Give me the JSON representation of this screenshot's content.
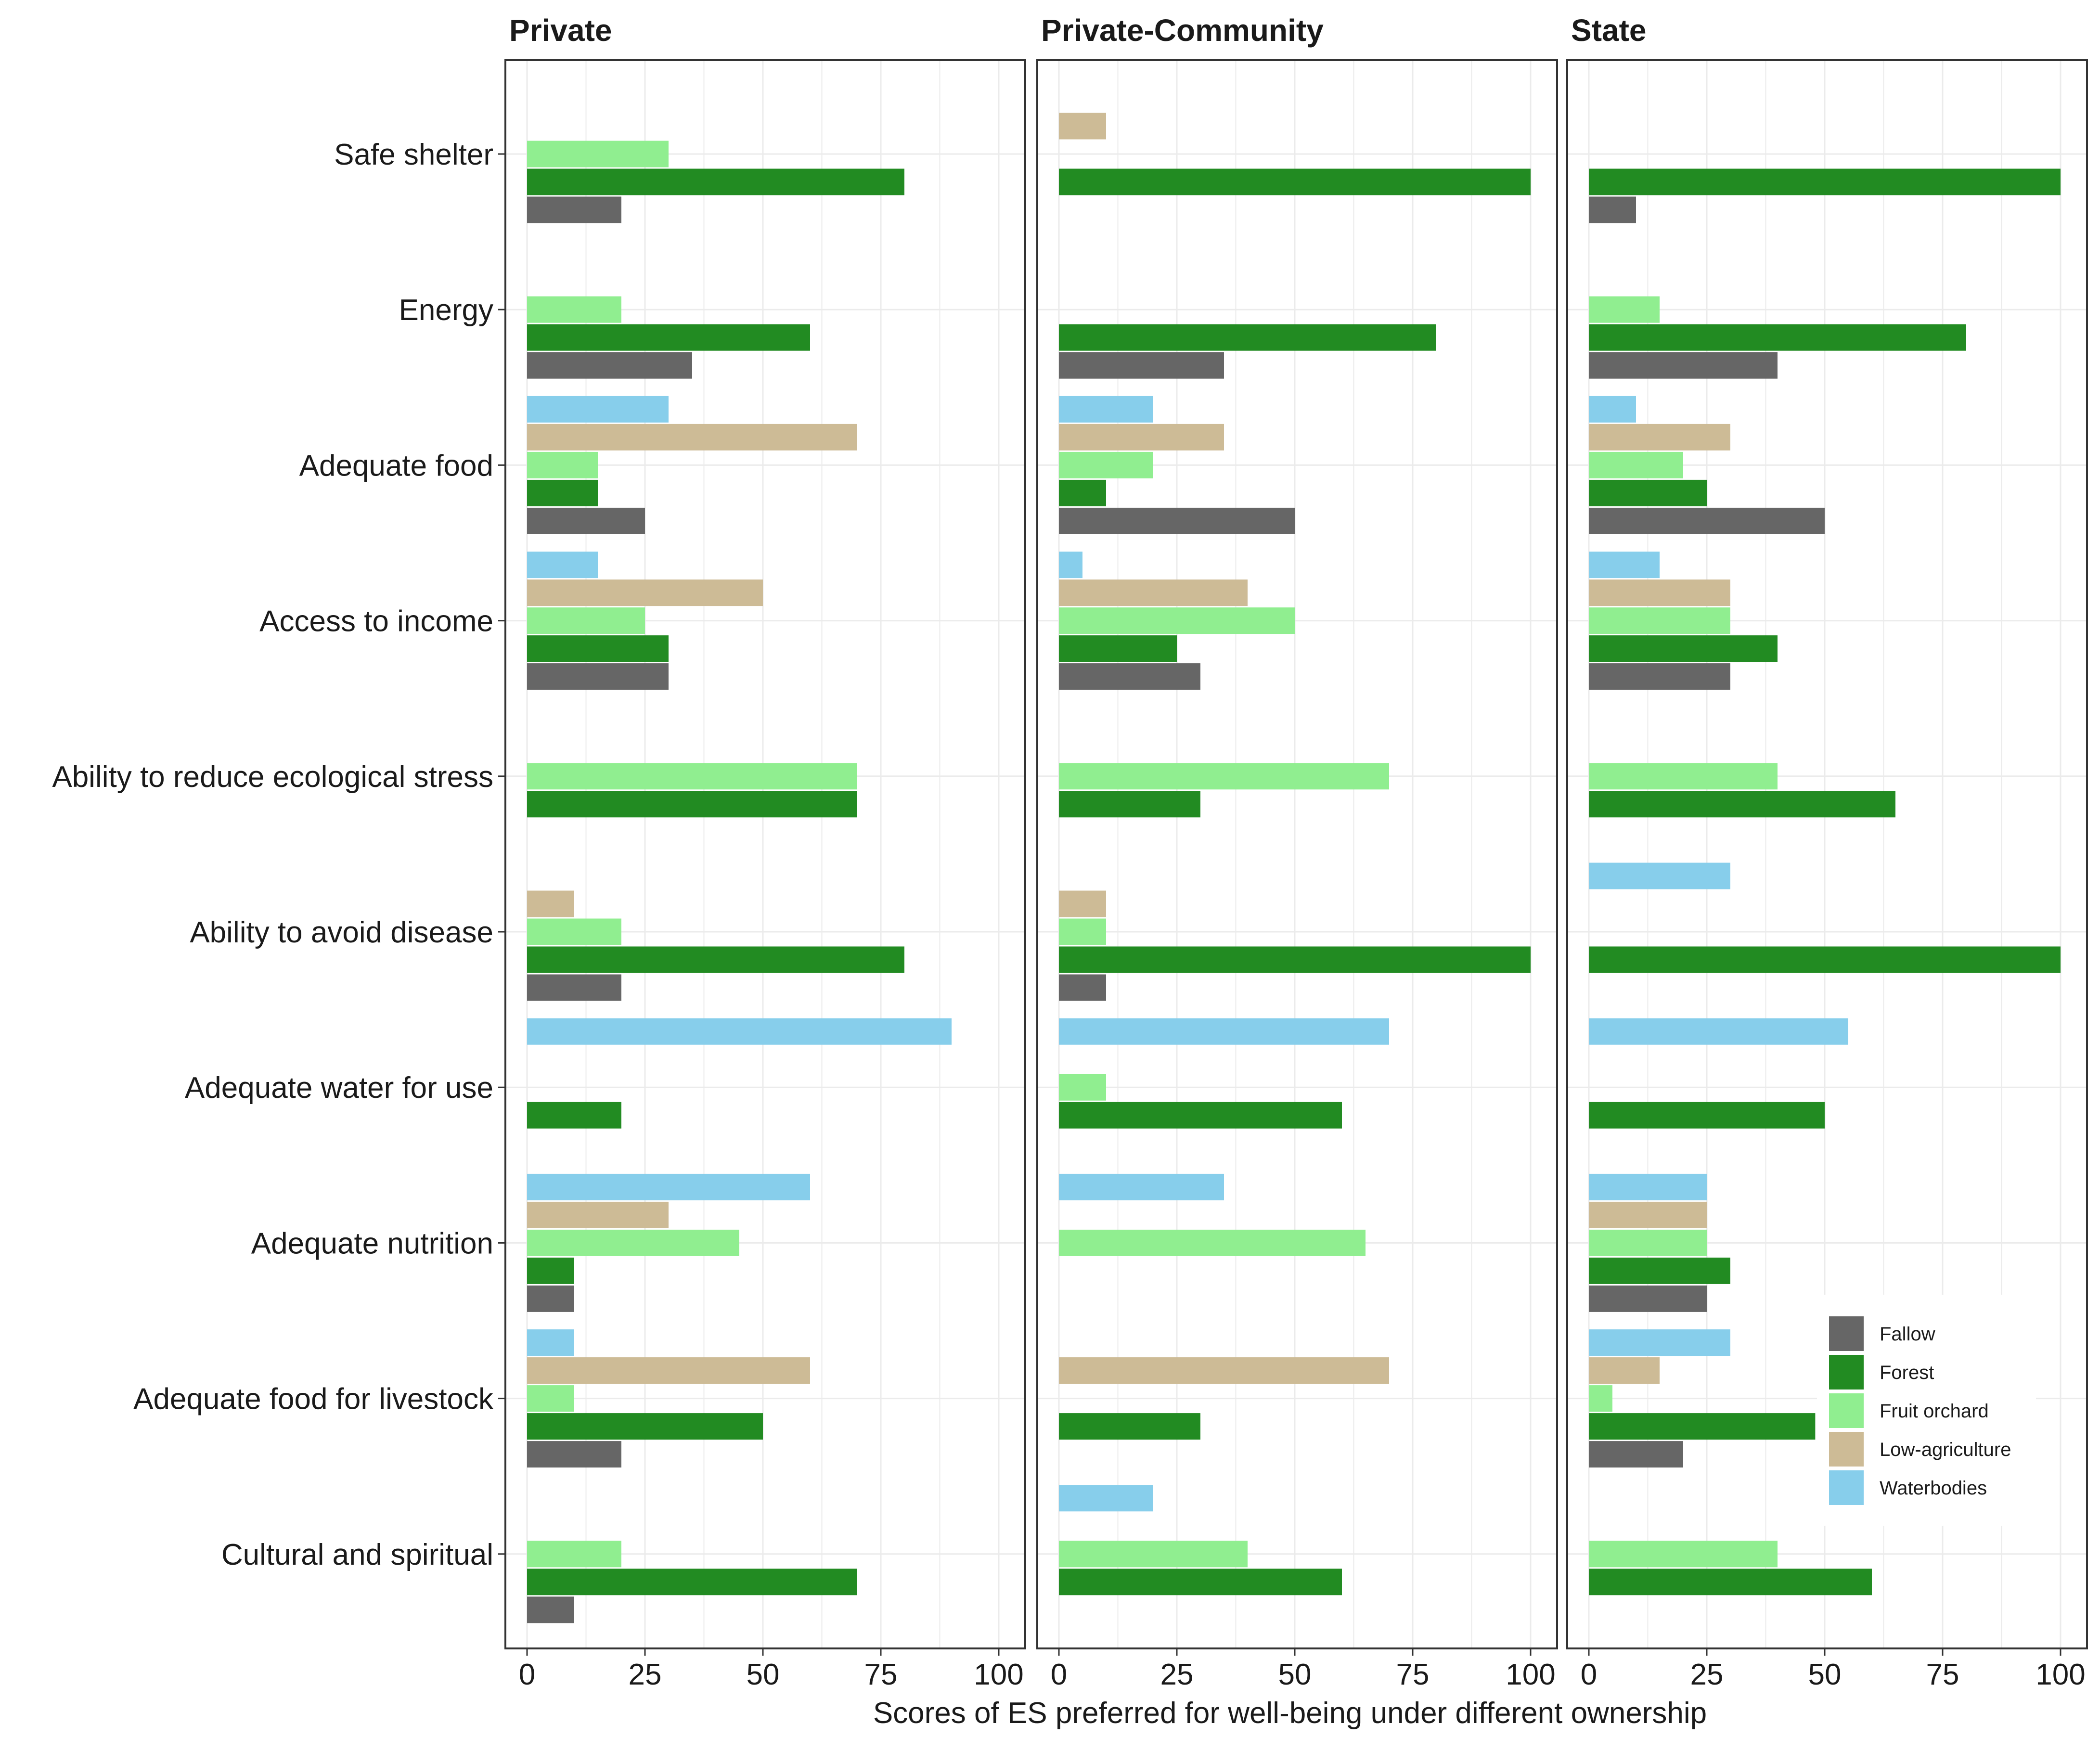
{
  "chart_data": {
    "type": "bar",
    "orientation": "horizontal",
    "facet": true,
    "xlabel": "Scores of ES preferred for well-being under different ownership",
    "ylabel": "",
    "xlim": [
      0,
      100
    ],
    "xticks": [
      0,
      25,
      50,
      75,
      100
    ],
    "grid": true,
    "legend_position": "bottom-right inside last panel",
    "categories": [
      "Safe shelter",
      "Energy",
      "Adequate food",
      "Access to income",
      "Ability to reduce ecological stress",
      "Ability to avoid disease",
      "Adequate water for use",
      "Adequate nutrition",
      "Adequate food for livestock",
      "Cultural and spiritual"
    ],
    "series_names": [
      "Fallow",
      "Forest",
      "Fruit orchard",
      "Low-agriculture",
      "Waterbodies"
    ],
    "colors": {
      "Fallow": "#666666",
      "Forest": "#228b22",
      "Fruit orchard": "#90ee90",
      "Low-agriculture": "#cdbb96",
      "Waterbodies": "#87ceeb"
    },
    "panels": [
      {
        "title": "Private",
        "series": [
          {
            "name": "Fallow",
            "values": [
              20,
              35,
              25,
              30,
              0,
              20,
              0,
              10,
              20,
              10
            ]
          },
          {
            "name": "Forest",
            "values": [
              80,
              60,
              15,
              30,
              70,
              80,
              20,
              10,
              50,
              70
            ]
          },
          {
            "name": "Fruit orchard",
            "values": [
              30,
              20,
              15,
              25,
              70,
              20,
              0,
              45,
              10,
              20
            ]
          },
          {
            "name": "Low-agriculture",
            "values": [
              0,
              0,
              70,
              50,
              0,
              10,
              0,
              30,
              60,
              0
            ]
          },
          {
            "name": "Waterbodies",
            "values": [
              0,
              0,
              30,
              15,
              0,
              0,
              90,
              60,
              10,
              0
            ]
          }
        ]
      },
      {
        "title": "Private-Community",
        "series": [
          {
            "name": "Fallow",
            "values": [
              0,
              35,
              50,
              30,
              0,
              10,
              0,
              0,
              0,
              0
            ]
          },
          {
            "name": "Forest",
            "values": [
              100,
              80,
              10,
              25,
              30,
              100,
              60,
              0,
              30,
              60
            ]
          },
          {
            "name": "Fruit orchard",
            "values": [
              0,
              0,
              20,
              50,
              70,
              10,
              10,
              65,
              0,
              40
            ]
          },
          {
            "name": "Low-agriculture",
            "values": [
              10,
              0,
              35,
              40,
              0,
              10,
              0,
              0,
              70,
              0
            ]
          },
          {
            "name": "Waterbodies",
            "values": [
              0,
              0,
              20,
              5,
              0,
              0,
              70,
              35,
              0,
              20
            ]
          }
        ]
      },
      {
        "title": "State",
        "series": [
          {
            "name": "Fallow",
            "values": [
              10,
              40,
              50,
              30,
              0,
              0,
              0,
              25,
              20,
              0
            ]
          },
          {
            "name": "Forest",
            "values": [
              100,
              80,
              25,
              40,
              65,
              100,
              50,
              30,
              48,
              60
            ]
          },
          {
            "name": "Fruit orchard",
            "values": [
              0,
              15,
              20,
              30,
              40,
              0,
              0,
              25,
              5,
              40
            ]
          },
          {
            "name": "Low-agriculture",
            "values": [
              0,
              0,
              30,
              30,
              0,
              0,
              0,
              25,
              15,
              0
            ]
          },
          {
            "name": "Waterbodies",
            "values": [
              0,
              0,
              10,
              15,
              0,
              30,
              55,
              25,
              30,
              0
            ]
          }
        ]
      }
    ]
  }
}
